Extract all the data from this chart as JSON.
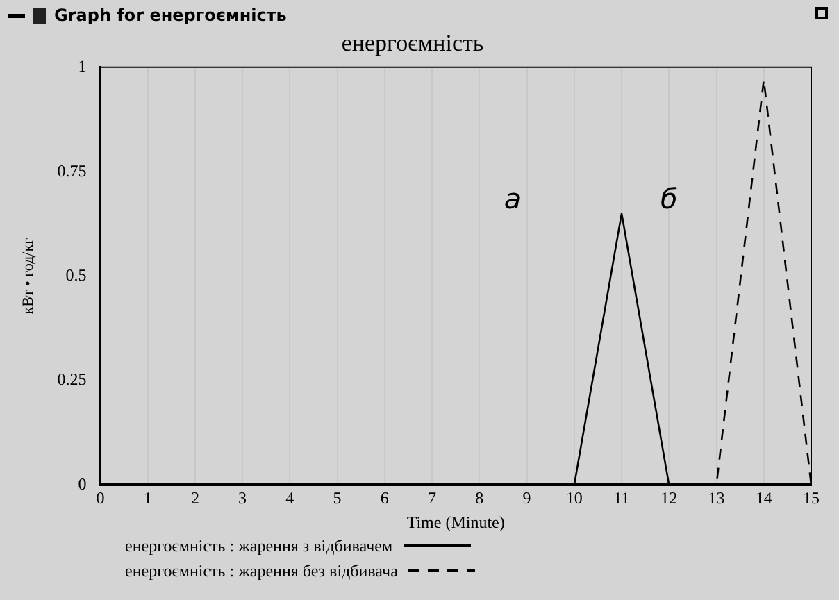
{
  "chart_data": {
    "type": "line",
    "title": "енергоємність",
    "subtitle": "Graph for енергоємність",
    "xlabel": "Time (Minute)",
    "ylabel": "кВт • год/кг",
    "x": [
      0,
      1,
      2,
      3,
      4,
      5,
      6,
      7,
      8,
      9,
      10,
      11,
      12,
      13,
      14,
      15
    ],
    "series": [
      {
        "name": "енергоємність : жарення з відбивачем",
        "color": "#000000",
        "line_style": "solid",
        "values": [
          0,
          0,
          0,
          0,
          0,
          0,
          0,
          0,
          0,
          0,
          0,
          0.65,
          0,
          0,
          0,
          0
        ]
      },
      {
        "name": "енергоємність : жарення без відбивача",
        "color": "#000000",
        "line_style": "dashed",
        "values": [
          0,
          0,
          0,
          0,
          0,
          0,
          0,
          0,
          0,
          0,
          0,
          0,
          0,
          0,
          0.97,
          0
        ]
      }
    ],
    "xlim": [
      0,
      15
    ],
    "xticks": [
      0,
      1,
      2,
      3,
      4,
      5,
      6,
      7,
      8,
      9,
      10,
      11,
      12,
      13,
      14,
      15
    ],
    "ylim": [
      0,
      1
    ],
    "yticks": [
      0,
      0.25,
      0.5,
      0.75,
      1
    ],
    "grid": "x",
    "legend": "bottom",
    "marker": "none",
    "annotations": [
      "а",
      "б"
    ]
  }
}
